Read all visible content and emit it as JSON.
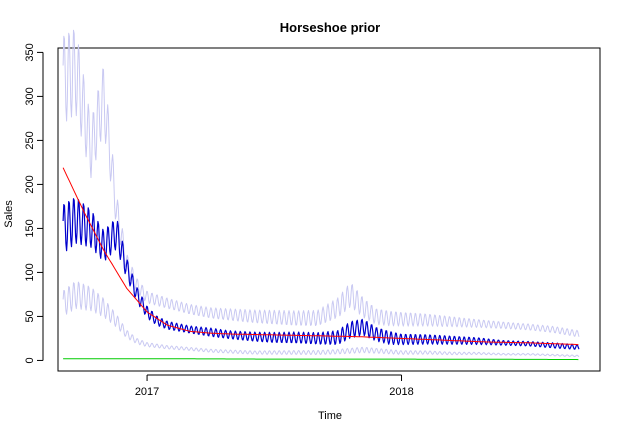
{
  "chart_data": {
    "type": "line",
    "title": "Horseshoe prior",
    "xlabel": "Time",
    "ylabel": "Sales",
    "xlim": [
      2016.65,
      2018.78
    ],
    "ylim": [
      -12,
      355
    ],
    "x_ticks": [
      {
        "value": 2017.0,
        "label": "2017"
      },
      {
        "value": 2018.0,
        "label": "2018"
      }
    ],
    "y_ticks": [
      0,
      50,
      100,
      150,
      200,
      250,
      300,
      350
    ],
    "grid": false,
    "legend": "none",
    "series": [
      {
        "role": "interval_upper",
        "color": "#c9c9f2",
        "x": [
          2016.67,
          2016.72,
          2016.78,
          2016.83,
          2016.88,
          2016.92,
          2016.96,
          2017.0,
          2017.08,
          2017.17,
          2017.25,
          2017.33,
          2017.42,
          2017.5,
          2017.58,
          2017.67,
          2017.75,
          2017.8,
          2017.85,
          2017.9,
          2017.95,
          2018.0,
          2018.1,
          2018.2,
          2018.3,
          2018.4,
          2018.5,
          2018.6,
          2018.7
        ],
        "values": [
          320,
          330,
          240,
          300,
          170,
          110,
          85,
          72,
          65,
          58,
          54,
          52,
          50,
          49,
          48,
          48,
          60,
          75,
          60,
          50,
          48,
          47,
          46,
          44,
          42,
          40,
          38,
          35,
          30
        ]
      },
      {
        "role": "interval_lower",
        "color": "#c9c9f2",
        "x": [
          2016.67,
          2016.72,
          2016.78,
          2016.83,
          2016.88,
          2016.92,
          2016.96,
          2017.0,
          2017.08,
          2017.17,
          2017.25,
          2017.33,
          2017.42,
          2017.5,
          2017.58,
          2017.67,
          2017.75,
          2017.85,
          2017.95,
          2018.0,
          2018.1,
          2018.2,
          2018.3,
          2018.4,
          2018.5,
          2018.6,
          2018.7
        ],
        "values": [
          65,
          75,
          70,
          60,
          45,
          30,
          22,
          18,
          15,
          13,
          11,
          10,
          9,
          9,
          9,
          9,
          10,
          12,
          10,
          9,
          9,
          8,
          8,
          7,
          7,
          6,
          5
        ]
      },
      {
        "role": "observed",
        "color": "#0000cc",
        "x": [
          2016.67,
          2016.72,
          2016.78,
          2016.83,
          2016.88,
          2016.92,
          2016.96,
          2017.0,
          2017.04,
          2017.08,
          2017.17,
          2017.25,
          2017.33,
          2017.42,
          2017.5,
          2017.58,
          2017.67,
          2017.75,
          2017.8,
          2017.85,
          2017.9,
          2017.95,
          2018.0,
          2018.1,
          2018.2,
          2018.3,
          2018.4,
          2018.5,
          2018.6,
          2018.7
        ],
        "values": [
          150,
          160,
          150,
          130,
          145,
          105,
          75,
          55,
          45,
          40,
          35,
          32,
          29,
          27,
          26,
          26,
          25,
          26,
          35,
          38,
          30,
          26,
          24,
          24,
          23,
          22,
          20,
          19,
          17,
          15
        ],
        "amplitude": [
          25,
          25,
          22,
          20,
          22,
          15,
          12,
          10,
          8,
          7,
          6,
          6,
          5,
          5,
          5,
          5,
          5,
          6,
          7,
          7,
          6,
          6,
          5,
          5,
          5,
          5,
          4,
          4,
          4,
          3
        ]
      },
      {
        "role": "fitted_trend",
        "color": "#ff0000",
        "x": [
          2016.67,
          2016.75,
          2016.83,
          2016.92,
          2017.0,
          2017.08,
          2017.17,
          2017.25,
          2017.33,
          2017.5,
          2017.67,
          2017.83,
          2018.0,
          2018.17,
          2018.33,
          2018.5,
          2018.7
        ],
        "values": [
          219,
          170,
          125,
          82,
          55,
          40,
          33,
          31,
          30,
          29,
          28,
          27,
          25,
          23,
          21,
          20,
          18
        ]
      },
      {
        "role": "baseline",
        "color": "#00cc00",
        "x": [
          2016.67,
          2017.0,
          2017.5,
          2018.0,
          2018.5,
          2018.7
        ],
        "values": [
          2,
          2,
          1.5,
          1.5,
          1.2,
          1
        ]
      }
    ]
  }
}
